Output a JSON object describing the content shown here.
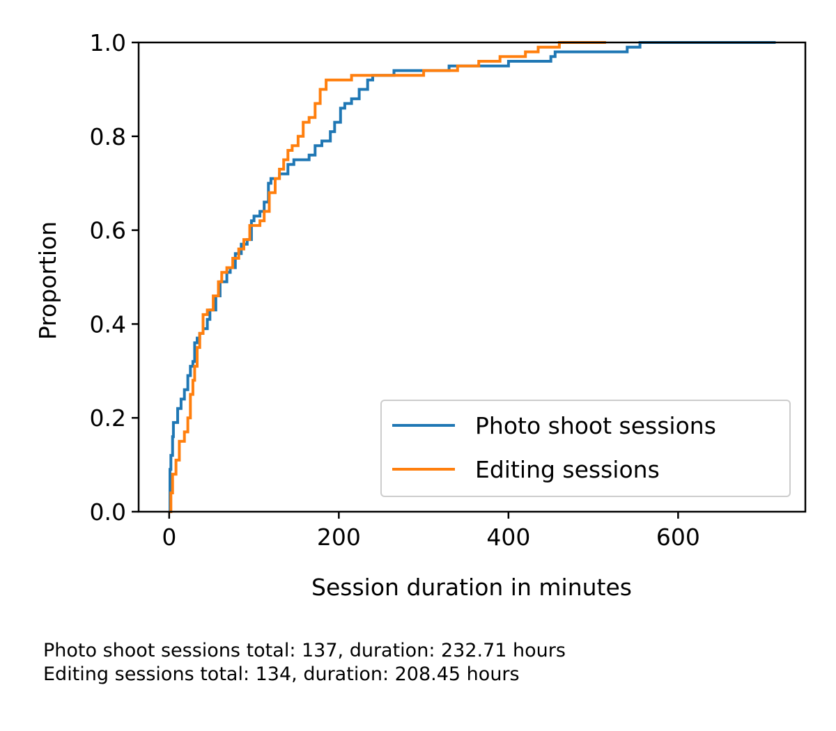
{
  "chart_data": {
    "type": "line",
    "xlabel": "Session duration in minutes",
    "ylabel": "Proportion",
    "xlim": [
      -36,
      750
    ],
    "ylim": [
      0,
      1
    ],
    "x_ticks": [
      0,
      200,
      400,
      600
    ],
    "y_ticks": [
      0.0,
      0.2,
      0.4,
      0.6,
      0.8,
      1.0
    ],
    "x_tick_labels": [
      "0",
      "200",
      "400",
      "600"
    ],
    "y_tick_labels": [
      "0.0",
      "0.2",
      "0.4",
      "0.6",
      "0.8",
      "1.0"
    ],
    "grid": false,
    "legend_position": "lower-right",
    "series": [
      {
        "name": "Photo shoot sessions",
        "color": "#1f77b4",
        "step": true,
        "points": [
          [
            0,
            0
          ],
          [
            1,
            0.09
          ],
          [
            2,
            0.12
          ],
          [
            4,
            0.16
          ],
          [
            5,
            0.19
          ],
          [
            10,
            0.22
          ],
          [
            14,
            0.24
          ],
          [
            18,
            0.26
          ],
          [
            22,
            0.29
          ],
          [
            25,
            0.31
          ],
          [
            28,
            0.32
          ],
          [
            30,
            0.36
          ],
          [
            33,
            0.37
          ],
          [
            36,
            0.38
          ],
          [
            40,
            0.39
          ],
          [
            45,
            0.41
          ],
          [
            48,
            0.43
          ],
          [
            55,
            0.46
          ],
          [
            60,
            0.49
          ],
          [
            68,
            0.51
          ],
          [
            72,
            0.52
          ],
          [
            78,
            0.55
          ],
          [
            85,
            0.57
          ],
          [
            92,
            0.58
          ],
          [
            97,
            0.62
          ],
          [
            100,
            0.63
          ],
          [
            107,
            0.64
          ],
          [
            112,
            0.66
          ],
          [
            117,
            0.7
          ],
          [
            120,
            0.71
          ],
          [
            130,
            0.72
          ],
          [
            140,
            0.74
          ],
          [
            147,
            0.75
          ],
          [
            165,
            0.76
          ],
          [
            172,
            0.78
          ],
          [
            180,
            0.79
          ],
          [
            190,
            0.81
          ],
          [
            195,
            0.83
          ],
          [
            202,
            0.86
          ],
          [
            207,
            0.87
          ],
          [
            215,
            0.88
          ],
          [
            224,
            0.9
          ],
          [
            234,
            0.92
          ],
          [
            240,
            0.93
          ],
          [
            265,
            0.94
          ],
          [
            300,
            0.94
          ],
          [
            330,
            0.95
          ],
          [
            360,
            0.95
          ],
          [
            400,
            0.96
          ],
          [
            440,
            0.96
          ],
          [
            450,
            0.97
          ],
          [
            455,
            0.98
          ],
          [
            540,
            0.99
          ],
          [
            555,
            1.0
          ],
          [
            715,
            1.0
          ]
        ]
      },
      {
        "name": "Editing sessions",
        "color": "#ff7f0e",
        "step": true,
        "points": [
          [
            0,
            0
          ],
          [
            2,
            0.04
          ],
          [
            4,
            0.08
          ],
          [
            8,
            0.11
          ],
          [
            12,
            0.15
          ],
          [
            18,
            0.17
          ],
          [
            22,
            0.2
          ],
          [
            25,
            0.25
          ],
          [
            28,
            0.28
          ],
          [
            30,
            0.31
          ],
          [
            33,
            0.35
          ],
          [
            36,
            0.38
          ],
          [
            40,
            0.42
          ],
          [
            45,
            0.43
          ],
          [
            52,
            0.46
          ],
          [
            58,
            0.49
          ],
          [
            62,
            0.51
          ],
          [
            68,
            0.52
          ],
          [
            75,
            0.54
          ],
          [
            82,
            0.56
          ],
          [
            88,
            0.58
          ],
          [
            95,
            0.61
          ],
          [
            100,
            0.61
          ],
          [
            107,
            0.62
          ],
          [
            112,
            0.64
          ],
          [
            118,
            0.68
          ],
          [
            125,
            0.71
          ],
          [
            130,
            0.73
          ],
          [
            135,
            0.75
          ],
          [
            140,
            0.77
          ],
          [
            145,
            0.78
          ],
          [
            152,
            0.8
          ],
          [
            158,
            0.83
          ],
          [
            165,
            0.84
          ],
          [
            172,
            0.87
          ],
          [
            178,
            0.9
          ],
          [
            185,
            0.92
          ],
          [
            200,
            0.92
          ],
          [
            215,
            0.93
          ],
          [
            260,
            0.93
          ],
          [
            300,
            0.94
          ],
          [
            340,
            0.95
          ],
          [
            365,
            0.96
          ],
          [
            390,
            0.97
          ],
          [
            420,
            0.98
          ],
          [
            435,
            0.99
          ],
          [
            440,
            0.99
          ],
          [
            460,
            1.0
          ],
          [
            515,
            1.0
          ]
        ]
      }
    ]
  },
  "footnote": {
    "line1": "Photo shoot sessions total: 137, duration: 232.71 hours",
    "line2": "Editing sessions total: 134, duration: 208.45 hours"
  }
}
